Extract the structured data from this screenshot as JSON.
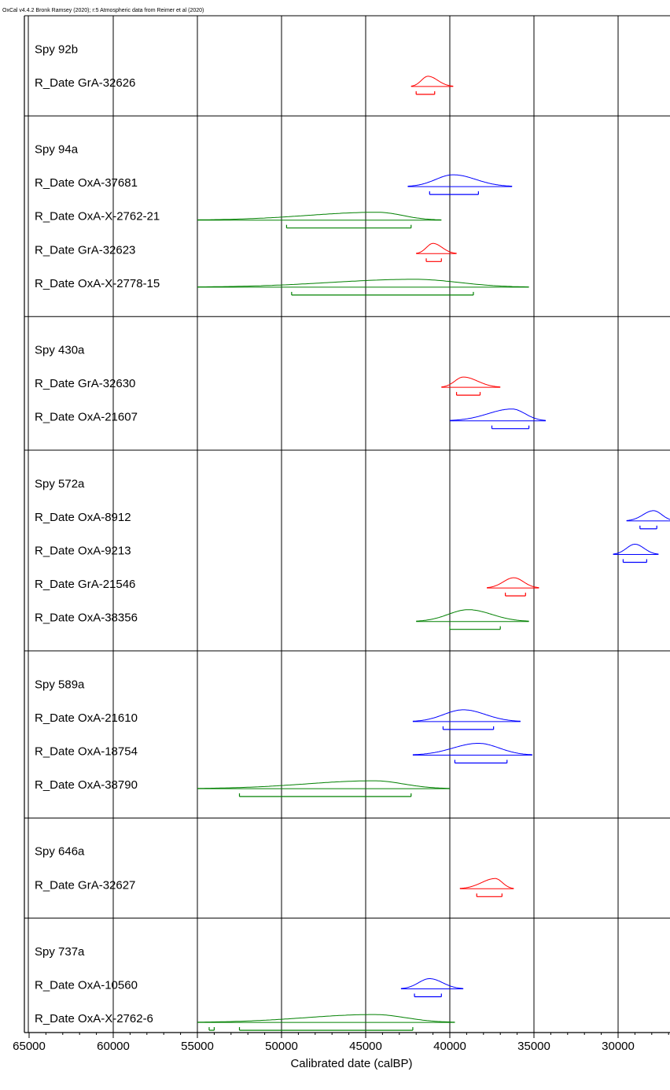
{
  "header": "OxCal v4.4.2 Bronk Ramsey (2020); r:5 Atmospheric data from Reimer et al (2020)",
  "chart_data": {
    "type": "range-plot",
    "xlabel": "Calibrated date (calBP)",
    "xlim": [
      65000,
      26500
    ],
    "x_reversed": true,
    "xticks": [
      {
        "value": 65000,
        "label": "65000"
      },
      {
        "value": 60000,
        "label": "60000"
      },
      {
        "value": 55000,
        "label": "55000"
      },
      {
        "value": 50000,
        "label": "50000"
      },
      {
        "value": 45000,
        "label": "45000"
      },
      {
        "value": 40000,
        "label": "40000"
      },
      {
        "value": 35000,
        "label": "35000"
      },
      {
        "value": 30000,
        "label": "30000"
      }
    ],
    "grid": true,
    "colors": {
      "red": "#ff0000",
      "blue": "#0000ff",
      "green": "#008000"
    },
    "groups": [
      {
        "name": "Spy 92b",
        "dates": [
          {
            "label": "R_Date GrA-32626",
            "color": "red",
            "peak": 41300,
            "full": [
              42300,
              39800
            ],
            "hpd95": [
              42000,
              40900
            ]
          }
        ]
      },
      {
        "name": "Spy 94a",
        "dates": [
          {
            "label": "R_Date OxA-37681",
            "color": "blue",
            "peak": 39800,
            "full": [
              42500,
              36300
            ],
            "hpd95": [
              41200,
              38300
            ]
          },
          {
            "label": "R_Date OxA-X-2762-21",
            "color": "green",
            "peak": 44300,
            "full": [
              55000,
              40500
            ],
            "hpd95": [
              49700,
              42300
            ]
          },
          {
            "label": "R_Date GrA-32623",
            "color": "red",
            "peak": 41000,
            "full": [
              42000,
              39600
            ],
            "hpd95": [
              41400,
              40500
            ]
          },
          {
            "label": "R_Date OxA-X-2778-15",
            "color": "green",
            "peak": 42100,
            "full": [
              55000,
              35300
            ],
            "hpd95": [
              49400,
              38600
            ]
          }
        ]
      },
      {
        "name": "Spy 430a",
        "dates": [
          {
            "label": "R_Date GrA-32630",
            "color": "red",
            "peak": 39200,
            "full": [
              40500,
              37000
            ],
            "hpd95": [
              39600,
              38200
            ]
          },
          {
            "label": "R_Date OxA-21607",
            "color": "blue",
            "peak": 36300,
            "full": [
              40000,
              34300
            ],
            "hpd95": [
              37500,
              35300
            ]
          }
        ]
      },
      {
        "name": "Spy 572a",
        "dates": [
          {
            "label": "R_Date OxA-8912",
            "color": "blue",
            "peak": 27900,
            "full": [
              29500,
              26600
            ],
            "hpd95": [
              28700,
              27700
            ]
          },
          {
            "label": "R_Date OxA-9213",
            "color": "blue",
            "peak": 29000,
            "full": [
              30300,
              27600
            ],
            "hpd95": [
              29700,
              28300
            ]
          },
          {
            "label": "R_Date GrA-21546",
            "color": "red",
            "peak": 36200,
            "full": [
              37800,
              34700
            ],
            "hpd95": [
              36700,
              35500
            ]
          },
          {
            "label": "R_Date OxA-38356",
            "color": "green",
            "peak": 38900,
            "full": [
              42000,
              35300
            ],
            "hpd95": [
              40000,
              37000
            ]
          }
        ]
      },
      {
        "name": "Spy 589a",
        "dates": [
          {
            "label": "R_Date OxA-21610",
            "color": "blue",
            "peak": 39200,
            "full": [
              42200,
              35800
            ],
            "hpd95": [
              40400,
              37400
            ]
          },
          {
            "label": "R_Date OxA-18754",
            "color": "blue",
            "peak": 38300,
            "full": [
              42200,
              35100
            ],
            "hpd95": [
              39700,
              36600
            ]
          },
          {
            "label": "R_Date OxA-38790",
            "color": "green",
            "peak": 44500,
            "full": [
              55000,
              40000
            ],
            "hpd95": [
              52500,
              42300
            ]
          }
        ]
      },
      {
        "name": "Spy 646a",
        "dates": [
          {
            "label": "R_Date GrA-32627",
            "color": "red",
            "peak": 37300,
            "full": [
              39400,
              36200
            ],
            "hpd95": [
              38400,
              36900
            ]
          }
        ]
      },
      {
        "name": "Spy 737a",
        "dates": [
          {
            "label": "R_Date OxA-10560",
            "color": "blue",
            "peak": 41200,
            "full": [
              42900,
              39200
            ],
            "hpd95": [
              42100,
              40500
            ]
          },
          {
            "label": "R_Date OxA-X-2762-6",
            "color": "green",
            "peak": 44500,
            "full": [
              55000,
              39700
            ],
            "hpd95": [
              52500,
              42200
            ],
            "hpd95_extra": [
              54300,
              54000
            ]
          }
        ]
      }
    ]
  }
}
